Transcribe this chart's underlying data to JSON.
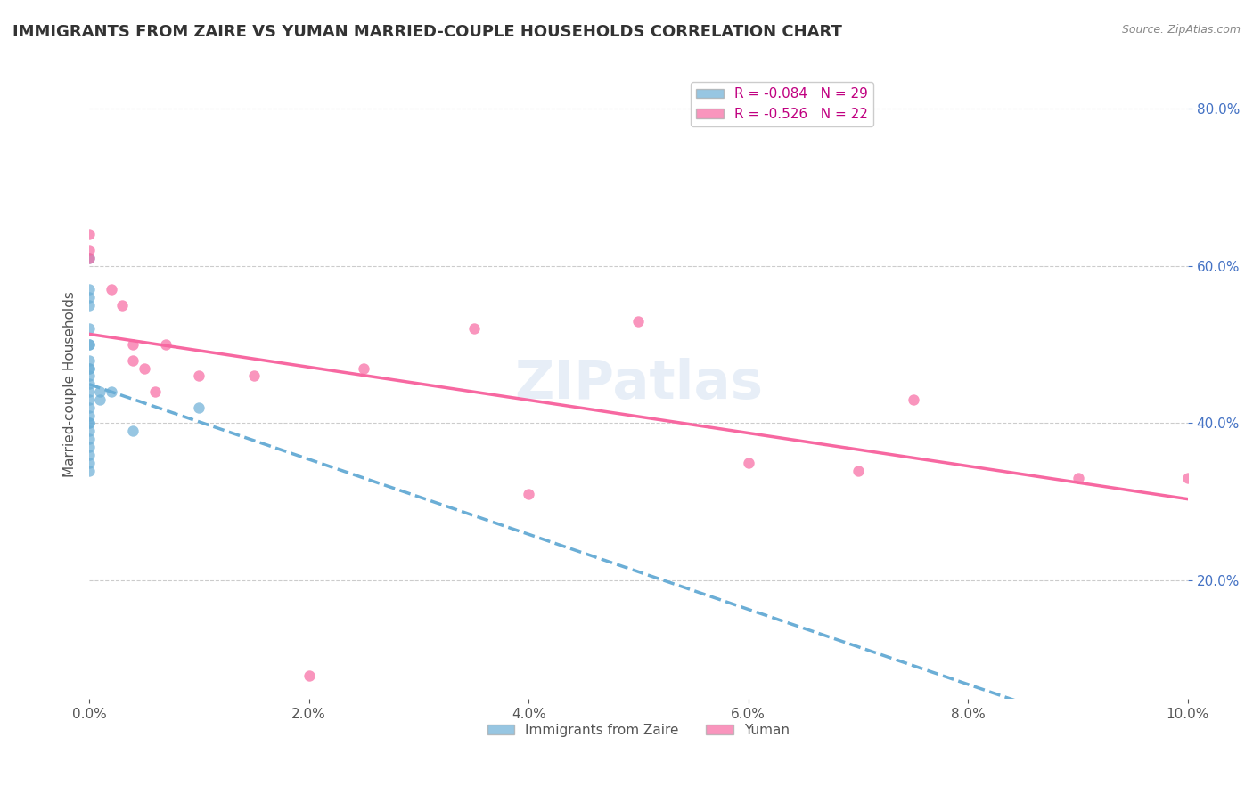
{
  "title": "IMMIGRANTS FROM ZAIRE VS YUMAN MARRIED-COUPLE HOUSEHOLDS CORRELATION CHART",
  "source_text": "Source: ZipAtlas.com",
  "ylabel": "Married-couple Households",
  "legend_label1": "R = -0.084   N = 29",
  "legend_label2": "R = -0.526   N = 22",
  "legend_series1": "Immigrants from Zaire",
  "legend_series2": "Yuman",
  "blue_color": "#6baed6",
  "pink_color": "#f768a1",
  "blue_scatter": [
    [
      0.0,
      0.47
    ],
    [
      0.0,
      0.57
    ],
    [
      0.0,
      0.61
    ],
    [
      0.0,
      0.56
    ],
    [
      0.0,
      0.55
    ],
    [
      0.0,
      0.52
    ],
    [
      0.0,
      0.5
    ],
    [
      0.0,
      0.5
    ],
    [
      0.0,
      0.48
    ],
    [
      0.0,
      0.47
    ],
    [
      0.0,
      0.46
    ],
    [
      0.0,
      0.45
    ],
    [
      0.0,
      0.44
    ],
    [
      0.0,
      0.43
    ],
    [
      0.0,
      0.42
    ],
    [
      0.0,
      0.41
    ],
    [
      0.0,
      0.4
    ],
    [
      0.0,
      0.4
    ],
    [
      0.0,
      0.39
    ],
    [
      0.0,
      0.38
    ],
    [
      0.0,
      0.37
    ],
    [
      0.0,
      0.36
    ],
    [
      0.0,
      0.35
    ],
    [
      0.0,
      0.34
    ],
    [
      0.001,
      0.44
    ],
    [
      0.001,
      0.43
    ],
    [
      0.002,
      0.44
    ],
    [
      0.004,
      0.39
    ],
    [
      0.01,
      0.42
    ]
  ],
  "pink_scatter": [
    [
      0.0,
      0.64
    ],
    [
      0.0,
      0.62
    ],
    [
      0.0,
      0.61
    ],
    [
      0.002,
      0.57
    ],
    [
      0.003,
      0.55
    ],
    [
      0.004,
      0.5
    ],
    [
      0.004,
      0.48
    ],
    [
      0.005,
      0.47
    ],
    [
      0.006,
      0.44
    ],
    [
      0.007,
      0.5
    ],
    [
      0.01,
      0.46
    ],
    [
      0.015,
      0.46
    ],
    [
      0.02,
      0.08
    ],
    [
      0.025,
      0.47
    ],
    [
      0.035,
      0.52
    ],
    [
      0.04,
      0.31
    ],
    [
      0.05,
      0.53
    ],
    [
      0.06,
      0.35
    ],
    [
      0.07,
      0.34
    ],
    [
      0.075,
      0.43
    ],
    [
      0.09,
      0.33
    ],
    [
      0.1,
      0.33
    ]
  ],
  "xlim": [
    0.0,
    0.1
  ],
  "ylim": [
    0.05,
    0.85
  ],
  "xticks": [
    0.0,
    0.02,
    0.04,
    0.06,
    0.08,
    0.1
  ],
  "yticks_right": [
    0.2,
    0.4,
    0.6,
    0.8
  ],
  "grid_color": "#cccccc",
  "background_color": "#ffffff",
  "watermark": "ZIPatlas",
  "title_fontsize": 13,
  "label_fontsize": 11,
  "tick_fontsize": 11,
  "right_tick_color": "#4472c4"
}
